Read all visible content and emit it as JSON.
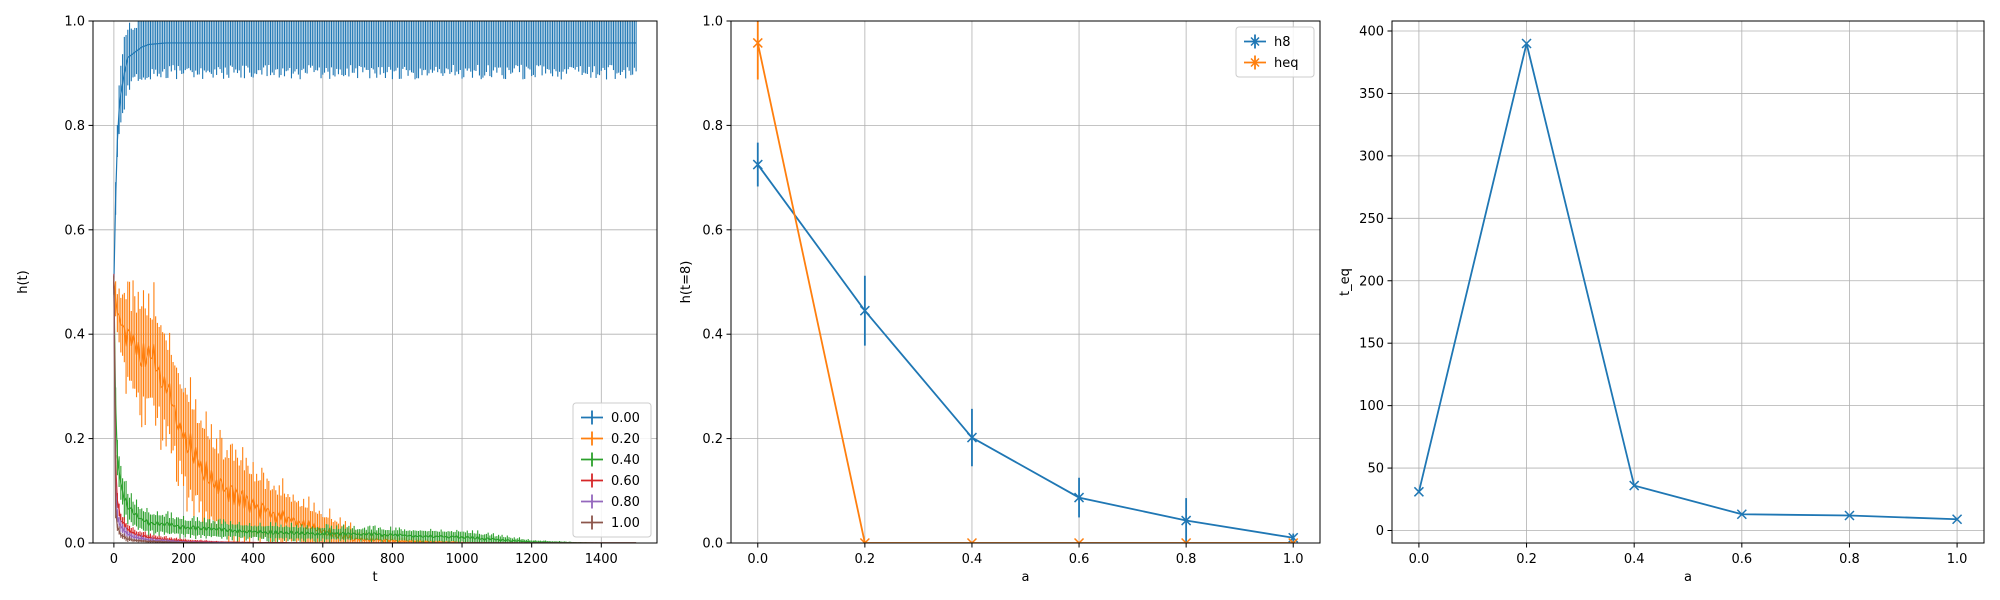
{
  "chart_data": [
    {
      "type": "line",
      "xlabel": "t",
      "ylabel": "h(t)",
      "xlim": [
        -60,
        1560
      ],
      "ylim": [
        0,
        1.0
      ],
      "xticks": [
        0,
        200,
        400,
        600,
        800,
        1000,
        1200,
        1400
      ],
      "yticks": [
        0.0,
        0.2,
        0.4,
        0.6,
        0.8,
        1.0
      ],
      "grid": true,
      "legend_position": "lower-right",
      "series": [
        {
          "name": "0.00",
          "color": "#1f77b4",
          "x": [
            0,
            5,
            10,
            15,
            20,
            30,
            40,
            60,
            80,
            100,
            150,
            200,
            300,
            400,
            600,
            800,
            1000,
            1200,
            1400,
            1500
          ],
          "y": [
            0.5,
            0.66,
            0.77,
            0.83,
            0.86,
            0.9,
            0.93,
            0.94,
            0.95,
            0.955,
            0.958,
            0.958,
            0.958,
            0.958,
            0.958,
            0.958,
            0.958,
            0.958,
            0.958,
            0.958
          ],
          "err": [
            0.02,
            0.04,
            0.05,
            0.06,
            0.06,
            0.07,
            0.07,
            0.07,
            0.07,
            0.07,
            0.07,
            0.07,
            0.07,
            0.07,
            0.07,
            0.07,
            0.07,
            0.07,
            0.07,
            0.07
          ]
        },
        {
          "name": "0.20",
          "color": "#ff7f0e",
          "x": [
            0,
            5,
            10,
            20,
            40,
            60,
            80,
            100,
            120,
            140,
            160,
            180,
            200,
            250,
            300,
            350,
            400,
            450,
            500,
            550,
            600,
            650,
            700,
            800,
            900,
            1000,
            1200,
            1400,
            1500
          ],
          "y": [
            0.5,
            0.47,
            0.44,
            0.42,
            0.39,
            0.37,
            0.365,
            0.36,
            0.35,
            0.32,
            0.29,
            0.25,
            0.21,
            0.15,
            0.105,
            0.09,
            0.07,
            0.055,
            0.045,
            0.035,
            0.025,
            0.015,
            0.008,
            0.004,
            0.002,
            0.001,
            0.0,
            0.0,
            0.0
          ],
          "err": [
            0.02,
            0.05,
            0.06,
            0.08,
            0.1,
            0.11,
            0.12,
            0.12,
            0.12,
            0.12,
            0.12,
            0.12,
            0.12,
            0.11,
            0.1,
            0.09,
            0.08,
            0.07,
            0.06,
            0.05,
            0.04,
            0.03,
            0.02,
            0.01,
            0.005,
            0.002,
            0.0,
            0.0,
            0.0
          ]
        },
        {
          "name": "0.40",
          "color": "#2ca02c",
          "x": [
            0,
            5,
            10,
            20,
            40,
            60,
            80,
            100,
            150,
            200,
            300,
            400,
            600,
            800,
            1000,
            1100,
            1200,
            1400,
            1500
          ],
          "y": [
            0.5,
            0.26,
            0.17,
            0.11,
            0.07,
            0.055,
            0.045,
            0.04,
            0.035,
            0.03,
            0.025,
            0.022,
            0.018,
            0.015,
            0.012,
            0.006,
            0.002,
            0.0,
            0.0
          ],
          "err": [
            0.02,
            0.04,
            0.04,
            0.04,
            0.035,
            0.03,
            0.028,
            0.025,
            0.022,
            0.02,
            0.018,
            0.016,
            0.015,
            0.014,
            0.014,
            0.01,
            0.004,
            0.0,
            0.0
          ]
        },
        {
          "name": "0.60",
          "color": "#d62728",
          "x": [
            0,
            5,
            10,
            20,
            40,
            60,
            100,
            150,
            200,
            300,
            400,
            600,
            1000,
            1500
          ],
          "y": [
            0.5,
            0.15,
            0.08,
            0.045,
            0.025,
            0.017,
            0.01,
            0.006,
            0.004,
            0.002,
            0.001,
            0.0,
            0.0,
            0.0
          ],
          "err": [
            0.02,
            0.03,
            0.02,
            0.015,
            0.012,
            0.01,
            0.008,
            0.006,
            0.004,
            0.002,
            0.001,
            0.0,
            0.0,
            0.0
          ]
        },
        {
          "name": "0.80",
          "color": "#9467bd",
          "x": [
            0,
            5,
            10,
            20,
            40,
            60,
            100,
            150,
            200,
            300,
            400,
            600,
            1000,
            1500
          ],
          "y": [
            0.5,
            0.1,
            0.05,
            0.03,
            0.017,
            0.011,
            0.006,
            0.004,
            0.002,
            0.001,
            0.0,
            0.0,
            0.0,
            0.0
          ],
          "err": [
            0.02,
            0.025,
            0.015,
            0.012,
            0.009,
            0.007,
            0.005,
            0.004,
            0.002,
            0.001,
            0.0,
            0.0,
            0.0,
            0.0
          ]
        },
        {
          "name": "1.00",
          "color": "#8c564b",
          "x": [
            0,
            5,
            10,
            20,
            40,
            60,
            100,
            150,
            200,
            300,
            400,
            600,
            1000,
            1500
          ],
          "y": [
            0.5,
            0.07,
            0.03,
            0.015,
            0.008,
            0.005,
            0.003,
            0.002,
            0.001,
            0.0,
            0.0,
            0.0,
            0.0,
            0.0
          ],
          "err": [
            0.02,
            0.02,
            0.01,
            0.008,
            0.005,
            0.004,
            0.003,
            0.002,
            0.001,
            0.0,
            0.0,
            0.0,
            0.0,
            0.0
          ]
        }
      ]
    },
    {
      "type": "line",
      "xlabel": "a",
      "ylabel": "h(t=8)",
      "xlim": [
        -0.05,
        1.05
      ],
      "ylim": [
        0,
        1.0
      ],
      "xticks": [
        0.0,
        0.2,
        0.4,
        0.6,
        0.8,
        1.0
      ],
      "yticks": [
        0.0,
        0.2,
        0.4,
        0.6,
        0.8,
        1.0
      ],
      "grid": true,
      "legend_position": "top-right",
      "series": [
        {
          "name": "h8",
          "color": "#1f77b4",
          "x": [
            0.0,
            0.2,
            0.4,
            0.6,
            0.8,
            1.0
          ],
          "y": [
            0.725,
            0.445,
            0.202,
            0.087,
            0.043,
            0.01
          ],
          "err": [
            0.042,
            0.067,
            0.055,
            0.038,
            0.043,
            0.008
          ]
        },
        {
          "name": "heq",
          "color": "#ff7f0e",
          "x": [
            0.0,
            0.2,
            0.4,
            0.6,
            0.8,
            1.0
          ],
          "y": [
            0.958,
            0.0,
            0.0,
            0.0,
            0.0,
            0.0
          ],
          "err": [
            0.07,
            0.0,
            0.0,
            0.0,
            0.0,
            0.0
          ]
        }
      ]
    },
    {
      "type": "line",
      "xlabel": "a",
      "ylabel": "t_eq",
      "xlim": [
        -0.05,
        1.05
      ],
      "ylim": [
        -10,
        408
      ],
      "xticks": [
        0.0,
        0.2,
        0.4,
        0.6,
        0.8,
        1.0
      ],
      "yticks": [
        0,
        50,
        100,
        150,
        200,
        250,
        300,
        350,
        400
      ],
      "grid": true,
      "series": [
        {
          "color": "#1f77b4",
          "x": [
            0.0,
            0.2,
            0.4,
            0.6,
            0.8,
            1.0
          ],
          "y": [
            31,
            390,
            36,
            13,
            12,
            9
          ]
        }
      ]
    }
  ]
}
